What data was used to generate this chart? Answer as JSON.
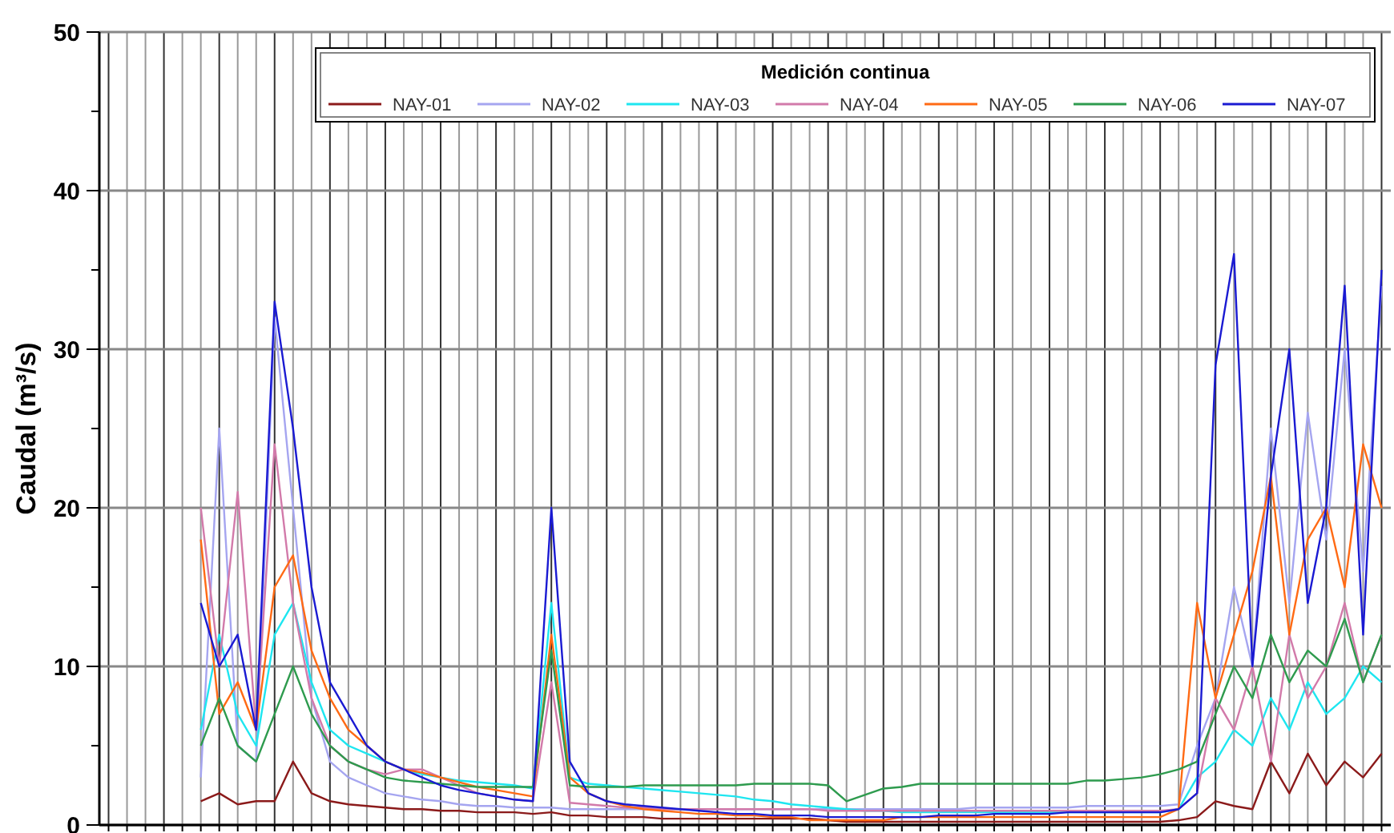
{
  "chart_data": {
    "type": "line",
    "ylabel": "Caudal (m³/s)",
    "legend_title": "Medición continua",
    "legend": "top right",
    "grid": true,
    "marker": "none",
    "line_style": "solid",
    "tick_labels": "y",
    "ylim": [
      0,
      50
    ],
    "yticks": [
      0,
      {
        "value": 5,
        "label": null
      },
      10,
      {
        "value": 15,
        "label": null
      },
      20,
      {
        "value": 25,
        "label": null
      },
      30,
      {
        "value": 35,
        "label": null
      },
      40,
      {
        "value": 45,
        "label": null
      },
      50
    ],
    "categories": [
      null,
      null,
      null,
      null,
      null,
      null,
      null,
      null,
      null,
      null,
      null,
      null,
      null,
      null,
      null,
      null,
      null,
      null,
      null,
      null,
      null,
      null,
      null,
      null,
      null,
      null,
      null,
      null,
      null,
      null,
      null,
      null,
      null,
      null,
      null,
      null,
      null,
      null,
      null,
      null,
      null,
      null,
      null,
      null,
      null,
      null,
      null,
      null,
      null,
      null,
      null,
      null,
      null,
      null,
      null,
      null,
      null,
      null,
      null,
      null,
      null,
      null,
      null,
      null,
      null,
      null,
      null,
      null,
      null,
      null
    ],
    "series": [
      {
        "name": "NAY-01",
        "color": "#8b1a1a",
        "values": [
          null,
          null,
          null,
          null,
          null,
          1.5,
          2,
          1.3,
          1.5,
          1.5,
          4,
          2,
          1.5,
          1.3,
          1.2,
          1.1,
          1,
          1,
          0.9,
          0.9,
          0.8,
          0.8,
          0.8,
          0.7,
          0.8,
          0.6,
          0.6,
          0.5,
          0.5,
          0.5,
          0.4,
          0.4,
          0.4,
          0.4,
          0.4,
          0.4,
          0.4,
          0.4,
          0.4,
          0.3,
          0.2,
          0.2,
          0.2,
          0.2,
          0.2,
          0.2,
          0.2,
          0.2,
          0.2,
          0.2,
          0.2,
          0.2,
          0.2,
          0.2,
          0.2,
          0.2,
          0.2,
          0.2,
          0.3,
          0.5,
          1.5,
          1.2,
          1,
          4,
          2,
          4.5,
          2.5,
          4,
          3,
          4.5
        ]
      },
      {
        "name": "NAY-02",
        "color": "#a5a5f0",
        "values": [
          null,
          null,
          null,
          null,
          null,
          3,
          25,
          5,
          4,
          32,
          20,
          8,
          4,
          3,
          2.5,
          2,
          1.8,
          1.6,
          1.5,
          1.3,
          1.2,
          1.2,
          1.1,
          1.1,
          1.1,
          1,
          1,
          1,
          1,
          1,
          1,
          1,
          1,
          1,
          1,
          1,
          1,
          1,
          1,
          1,
          1,
          1,
          1,
          1,
          1,
          1,
          1,
          1.1,
          1.1,
          1.1,
          1.1,
          1.1,
          1.1,
          1.2,
          1.2,
          1.2,
          1.2,
          1.2,
          1.3,
          5,
          8,
          15,
          10,
          25,
          14,
          26,
          18,
          30,
          16,
          34
        ]
      },
      {
        "name": "NAY-03",
        "color": "#1ee6f0",
        "values": [
          null,
          null,
          null,
          null,
          null,
          6,
          12,
          7,
          5,
          12,
          14,
          9,
          6,
          5,
          4.5,
          4,
          3.5,
          3.2,
          3,
          2.8,
          2.7,
          2.6,
          2.5,
          2.3,
          14,
          3,
          2.6,
          2.5,
          2.4,
          2.3,
          2.2,
          2.1,
          2,
          1.9,
          1.8,
          1.6,
          1.5,
          1.3,
          1.2,
          1.1,
          1,
          0.9,
          0.9,
          0.8,
          0.8,
          0.8,
          0.8,
          0.8,
          0.8,
          0.8,
          0.8,
          0.8,
          0.8,
          0.8,
          0.8,
          0.8,
          0.8,
          0.8,
          1,
          3,
          4,
          6,
          5,
          8,
          6,
          9,
          7,
          8,
          10,
          9
        ]
      },
      {
        "name": "NAY-04",
        "color": "#d27aaa",
        "values": [
          null,
          null,
          null,
          null,
          null,
          20,
          10,
          21,
          6,
          24,
          14,
          8,
          5,
          4,
          3.5,
          3.2,
          3.5,
          3.5,
          3,
          2.5,
          2,
          1.8,
          1.6,
          1.5,
          9,
          1.4,
          1.3,
          1.2,
          1.1,
          1.1,
          1,
          1,
          1,
          1,
          1,
          1,
          1,
          1,
          1,
          0.9,
          0.9,
          0.9,
          0.9,
          0.9,
          0.9,
          0.9,
          0.9,
          0.9,
          0.9,
          0.9,
          0.9,
          0.9,
          0.9,
          0.9,
          0.9,
          0.9,
          0.9,
          0.9,
          1,
          2,
          8,
          6,
          10,
          4,
          12,
          8,
          10,
          14,
          9,
          12
        ]
      },
      {
        "name": "NAY-05",
        "color": "#ff6a14",
        "values": [
          null,
          null,
          null,
          null,
          null,
          18,
          7,
          9,
          6,
          15,
          17,
          11,
          8,
          6,
          5,
          4,
          3.5,
          3.3,
          3,
          2.7,
          2.4,
          2.2,
          2,
          1.8,
          12,
          3,
          2,
          1.5,
          1.2,
          1,
          0.9,
          0.8,
          0.7,
          0.7,
          0.6,
          0.6,
          0.5,
          0.5,
          0.3,
          0.3,
          0.3,
          0.3,
          0.3,
          0.5,
          0.5,
          0.5,
          0.5,
          0.5,
          0.5,
          0.5,
          0.5,
          0.5,
          0.5,
          0.5,
          0.5,
          0.5,
          0.5,
          0.5,
          1,
          14,
          8,
          12,
          16,
          22,
          12,
          18,
          20,
          15,
          24,
          20
        ]
      },
      {
        "name": "NAY-06",
        "color": "#2e9b4e",
        "values": [
          null,
          null,
          null,
          null,
          null,
          5,
          8,
          5,
          4,
          7,
          10,
          7,
          5,
          4,
          3.5,
          3,
          2.8,
          2.7,
          2.6,
          2.5,
          2.4,
          2.4,
          2.4,
          2.4,
          11,
          2.5,
          2.4,
          2.4,
          2.4,
          2.5,
          2.5,
          2.5,
          2.5,
          2.5,
          2.5,
          2.6,
          2.6,
          2.6,
          2.6,
          2.5,
          1.5,
          1.9,
          2.3,
          2.4,
          2.6,
          2.6,
          2.6,
          2.6,
          2.6,
          2.6,
          2.6,
          2.6,
          2.6,
          2.8,
          2.8,
          2.9,
          3,
          3.2,
          3.5,
          4,
          7,
          10,
          8,
          12,
          9,
          11,
          10,
          13,
          9,
          12
        ]
      },
      {
        "name": "NAY-07",
        "color": "#1a1ad2",
        "values": [
          null,
          null,
          null,
          null,
          null,
          14,
          10,
          12,
          6,
          33,
          25,
          15,
          9,
          7,
          5,
          4,
          3.5,
          3,
          2.5,
          2.2,
          2,
          1.8,
          1.6,
          1.5,
          20,
          4,
          2,
          1.5,
          1.3,
          1.2,
          1.1,
          1,
          0.9,
          0.8,
          0.7,
          0.7,
          0.6,
          0.6,
          0.6,
          0.5,
          0.5,
          0.5,
          0.5,
          0.5,
          0.5,
          0.6,
          0.6,
          0.6,
          0.7,
          0.7,
          0.7,
          0.7,
          0.8,
          0.8,
          0.8,
          0.8,
          0.8,
          0.8,
          1,
          2,
          29,
          36,
          10,
          22,
          30,
          14,
          20,
          34,
          12,
          35
        ]
      }
    ]
  }
}
